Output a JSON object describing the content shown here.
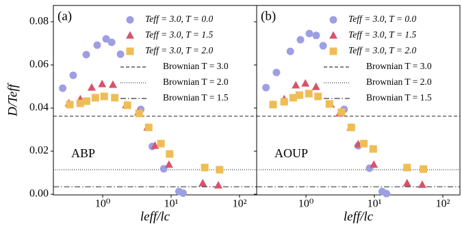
{
  "chart_data": [
    {
      "type": "scatter",
      "panel_label": "(a)",
      "annotation": "ABP",
      "xlabel": "leff/lc",
      "ylabel": "D/Teff",
      "xscale": "log",
      "legend": "upper right",
      "xlim": [
        0.19,
        178
      ],
      "ylim": [
        -0.0003,
        0.0876
      ],
      "xticks": [
        {
          "value": 1,
          "label": "10⁰"
        },
        {
          "value": 10,
          "label": "10¹"
        },
        {
          "value": 100,
          "label": "10²"
        }
      ],
      "yticks": [
        {
          "value": 0,
          "label": "0.00"
        },
        0.02,
        0.04,
        0.06,
        0.08
      ],
      "show_ytick_labels": true,
      "series": [
        {
          "name": "Teff = 3.0,  T = 0.0",
          "marker": "circle",
          "color": "#9e9ee2",
          "x": [
            0.26,
            0.37,
            0.575,
            0.83,
            1.12,
            1.35,
            1.82,
            3.6,
            5.3,
            7.8,
            13,
            15
          ],
          "values": [
            0.0492,
            0.0552,
            0.0648,
            0.0692,
            0.0721,
            0.0705,
            0.065,
            0.0394,
            0.0222,
            0.0118,
            0.0013,
            0.0005
          ]
        },
        {
          "name": "Teff = 3.0,  T = 1.5",
          "marker": "triangle",
          "color": "#d6546a",
          "x": [
            0.32,
            0.47,
            0.69,
            0.98,
            1.41,
            2.2,
            3.3,
            4.5,
            5.8,
            9.3,
            29,
            49
          ],
          "values": [
            0.0422,
            0.0441,
            0.0495,
            0.0511,
            0.0508,
            0.0413,
            0.038,
            0.031,
            0.0225,
            0.0137,
            0.0051,
            0.0041
          ]
        },
        {
          "name": "Teff = 3.0,  T = 2.0",
          "marker": "square",
          "color": "#efbd55",
          "x": [
            0.33,
            0.47,
            0.58,
            0.78,
            1.05,
            1.5,
            2.3,
            3.4,
            4.7,
            7.1,
            9.5,
            31,
            51
          ],
          "values": [
            0.0416,
            0.0422,
            0.0432,
            0.0448,
            0.0454,
            0.0448,
            0.0413,
            0.0375,
            0.031,
            0.0235,
            0.0187,
            0.0124,
            0.0114
          ]
        }
      ],
      "hlines": [
        {
          "name": "Brownian T = 3.0",
          "y": 0.0362,
          "style": "dashed",
          "color": "#000000"
        },
        {
          "name": "Brownian T = 2.0",
          "y": 0.0114,
          "style": "dotted",
          "color": "#000000"
        },
        {
          "name": "Brownian T = 1.5",
          "y": 0.0035,
          "style": "dashdot",
          "color": "#000000"
        }
      ]
    },
    {
      "type": "scatter",
      "panel_label": "(b)",
      "annotation": "AOUP",
      "xlabel": "leff/lc",
      "xscale": "log",
      "legend": "upper right",
      "xlim": [
        0.19,
        178
      ],
      "ylim": [
        -0.0003,
        0.0876
      ],
      "xticks": [
        {
          "value": 1,
          "label": "10⁰"
        },
        {
          "value": 10,
          "label": "10¹"
        },
        {
          "value": 100,
          "label": "10²"
        }
      ],
      "yticks": [
        0,
        0.02,
        0.04,
        0.06,
        0.08
      ],
      "show_ytick_labels": false,
      "series": [
        {
          "name": "Teff = 3.0,  T = 0.0",
          "marker": "circle",
          "color": "#9e9ee2",
          "x": [
            0.26,
            0.37,
            0.59,
            0.83,
            1.12,
            1.41,
            1.78,
            3.6,
            5.8,
            8.5,
            13,
            15
          ],
          "values": [
            0.0495,
            0.0565,
            0.0663,
            0.0717,
            0.0746,
            0.0737,
            0.0689,
            0.0394,
            0.0225,
            0.0121,
            0.0013,
            0.0003
          ]
        },
        {
          "name": "Teff = 3.0,  T = 1.5",
          "marker": "triangle",
          "color": "#d6546a",
          "x": [
            0.33,
            0.48,
            0.71,
            0.98,
            1.4,
            2.3,
            3.1,
            4.5,
            5.8,
            9.8,
            30,
            50
          ],
          "values": [
            0.0416,
            0.0441,
            0.0505,
            0.0514,
            0.0498,
            0.0416,
            0.0375,
            0.031,
            0.0232,
            0.0137,
            0.0051,
            0.0044
          ]
        },
        {
          "name": "Teff = 3.0,  T = 2.0",
          "marker": "square",
          "color": "#efbd55",
          "x": [
            0.33,
            0.48,
            0.65,
            0.8,
            1.1,
            1.5,
            2.2,
            3.3,
            4.6,
            7,
            9.6,
            30,
            52
          ],
          "values": [
            0.0416,
            0.0429,
            0.0448,
            0.046,
            0.0467,
            0.0454,
            0.0419,
            0.0381,
            0.031,
            0.0235,
            0.021,
            0.0124,
            0.0117
          ]
        }
      ],
      "hlines": [
        {
          "name": "Brownian T = 3.0",
          "y": 0.0362,
          "style": "dashed",
          "color": "#000000"
        },
        {
          "name": "Brownian T = 2.0",
          "y": 0.0114,
          "style": "dotted",
          "color": "#000000"
        },
        {
          "name": "Brownian T = 1.5",
          "y": 0.0035,
          "style": "dashdot",
          "color": "#000000"
        }
      ]
    }
  ]
}
